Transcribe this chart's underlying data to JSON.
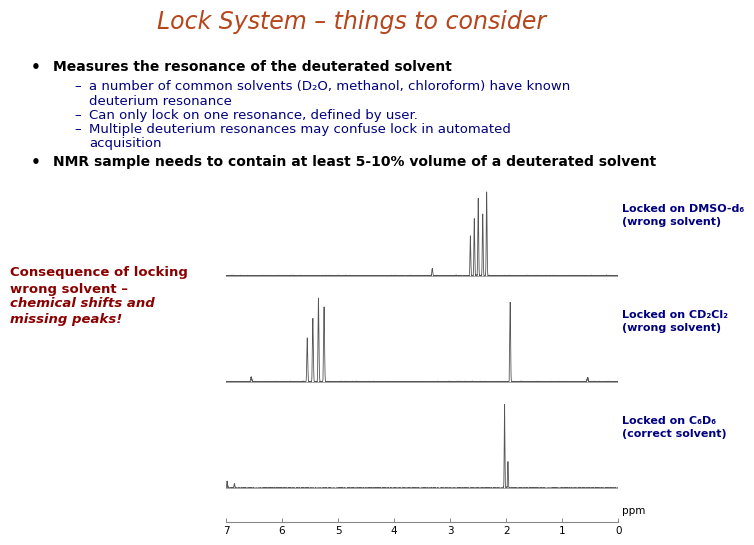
{
  "title": "Lock System – things to consider",
  "title_color": "#b5451b",
  "title_fontsize": 17,
  "bg_color": "#ffffff",
  "bullet1": "Measures the resonance of the deuterated solvent",
  "sub1a": "a number of common solvents (D₂O, methanol, chloroform) have known",
  "sub1b": "deuterium resonance",
  "sub2": "Can only lock on one resonance, defined by user.",
  "sub3a": "Multiple deuterium resonances may confuse lock in automated",
  "sub3b": "acquisition",
  "bullet2": "NMR sample needs to contain at least 5-10% volume of a deuterated solvent",
  "text_color": "#000080",
  "bullet_fontsize": 10,
  "sub_fontsize": 9.5,
  "consequence_line1": "Consequence of locking",
  "consequence_line2": "wrong solvent – ",
  "consequence_line2_italic": "wrong",
  "consequence_line3": "chemical shifts and",
  "consequence_line4": "missing peaks!",
  "consequence_color": "#8b0000",
  "label1": "Locked on DMSO-d₆\n(wrong solvent)",
  "label2": "Locked on CD₂Cl₂\n(wrong solvent)",
  "label3": "Locked on C₆D₆\n(correct solvent)",
  "label_color": "#000080",
  "label_fontsize": 8,
  "spectrum_color": "#555555",
  "axis_color": "#888888"
}
